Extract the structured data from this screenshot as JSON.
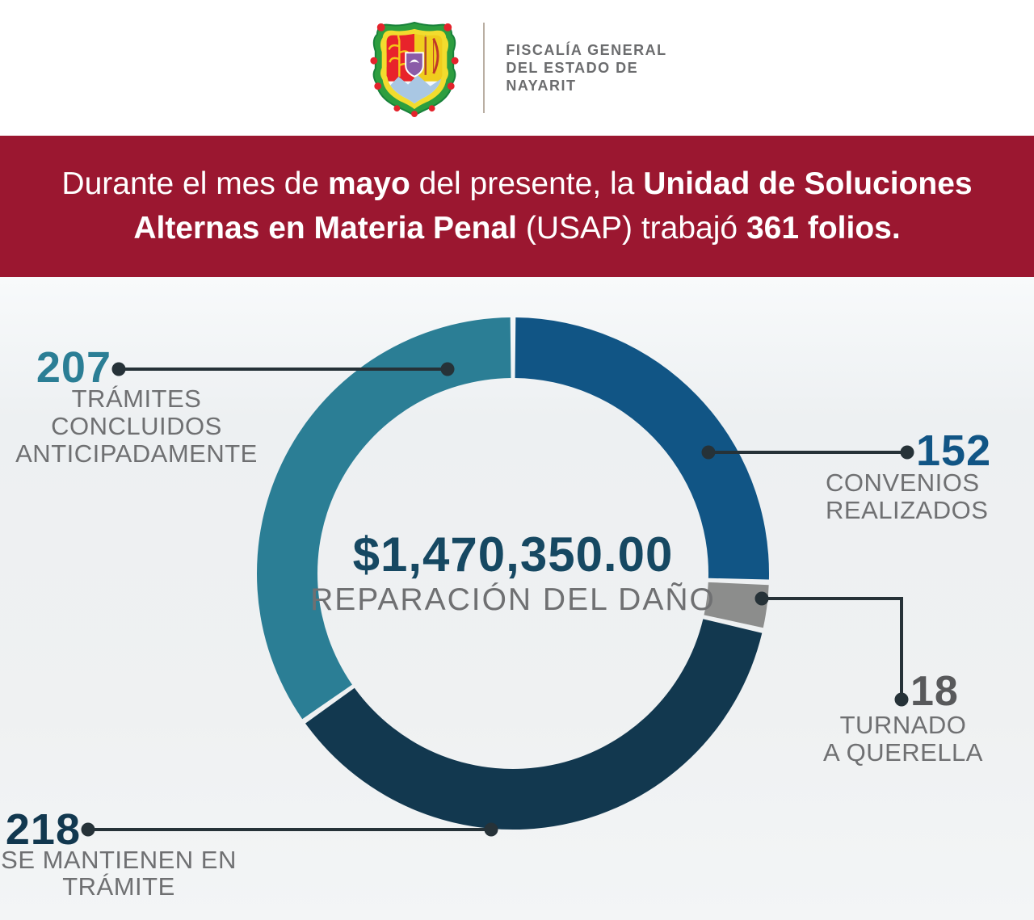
{
  "header": {
    "org_name_lines": [
      "FISCALÍA GENERAL",
      "DEL ESTADO DE",
      "NAYARIT"
    ],
    "logo": "nayarit-coat-of-arms"
  },
  "banner": {
    "bg_color": "#9B1730",
    "text_color": "#FFFFFF",
    "line1_segments": [
      {
        "text": "Durante el mes de ",
        "bold": false
      },
      {
        "text": "mayo",
        "bold": true
      },
      {
        "text": " del presente, la ",
        "bold": false
      },
      {
        "text": "Unidad de Soluciones",
        "bold": true
      }
    ],
    "line2_segments": [
      {
        "text": "Alternas en Materia Penal",
        "bold": true
      },
      {
        "text": " (USAP) trabajó ",
        "bold": false
      },
      {
        "text": "361 folios.",
        "bold": true
      }
    ],
    "total_folios": "361"
  },
  "chart_data": {
    "type": "pie",
    "subtype": "donut",
    "start_angle_deg": 0,
    "direction": "clockwise",
    "gap_deg": 1.2,
    "center_value": "$1,470,350.00",
    "center_label": "REPARACIÓN DEL DAÑO",
    "segments": [
      {
        "id": "convenios-realizados",
        "value": 152,
        "label_lines": [
          "CONVENIOS",
          "REALIZADOS"
        ],
        "color": "#115585",
        "number_color": "#115585"
      },
      {
        "id": "turnado-a-querella",
        "value": 18,
        "label_lines": [
          "TURNADO",
          "A QUERELLA"
        ],
        "color": "#8C8D8C",
        "number_color": "#58595B"
      },
      {
        "id": "se-mantienen-en-tramite",
        "value": 218,
        "label_lines": [
          "SE MANTIENEN EN",
          "TRÁMITE"
        ],
        "color": "#12384F",
        "number_color": "#12384F"
      },
      {
        "id": "tramites-concluidos-anticipadamente",
        "value": 207,
        "label_lines": [
          "TRÁMITES CONCLUIDOS",
          "ANTICIPADAMENTE"
        ],
        "color": "#2B7E95",
        "number_color": "#2B7E95"
      }
    ],
    "leader_line_color": "#263238",
    "label_text_color": "#6F7072"
  }
}
